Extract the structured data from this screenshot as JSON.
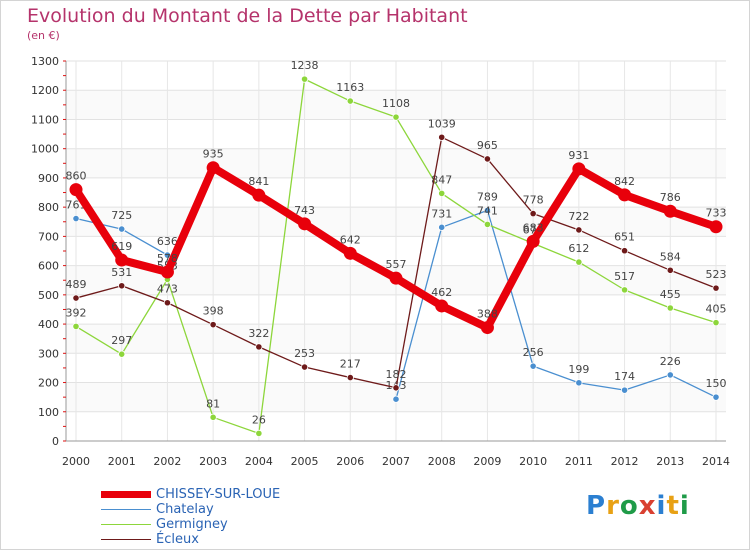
{
  "title": "Evolution du Montant de la Dette par Habitant",
  "subtitle": "(en €)",
  "logo": {
    "text": "Proxiti",
    "colors": [
      "#2b7fd1",
      "#e8a115",
      "#1f9b48",
      "#d94031",
      "#2b7fd1",
      "#e8a115",
      "#1f9b48"
    ]
  },
  "chart_data": {
    "type": "line",
    "title": "Evolution du Montant de la Dette par Habitant",
    "subtitle": "(en €)",
    "xlabel": "",
    "ylabel": "",
    "x": [
      "2000",
      "2001",
      "2002",
      "2003",
      "2004",
      "2005",
      "2006",
      "2007",
      "2008",
      "2009",
      "2010",
      "2011",
      "2012",
      "2013",
      "2014"
    ],
    "ylim": [
      0,
      1300
    ],
    "yticks": [
      0,
      100,
      200,
      300,
      400,
      500,
      600,
      700,
      800,
      900,
      1000,
      1100,
      1200,
      1300
    ],
    "grid": true,
    "legend_position": "bottom-left",
    "series": [
      {
        "name": "CHISSEY-SUR-LOUE",
        "color": "#e8000b",
        "width": 8,
        "values": [
          860,
          619,
          578,
          935,
          841,
          743,
          642,
          557,
          462,
          388,
          683,
          931,
          842,
          786,
          733
        ],
        "labels": [
          "860",
          "619",
          "578",
          "935",
          "841",
          "743",
          "642",
          "557",
          "462",
          "388",
          "683",
          "931",
          "842",
          "786",
          "733"
        ]
      },
      {
        "name": "Chatelay",
        "color": "#4a8fd0",
        "width": 1.3,
        "values": [
          761,
          725,
          636,
          null,
          null,
          null,
          null,
          143,
          731,
          789,
          256,
          199,
          174,
          226,
          150
        ],
        "labels": [
          "761",
          "725",
          "636",
          "",
          "",
          "",
          "",
          "143",
          "731",
          "789",
          "256",
          "199",
          "174",
          "226",
          "150"
        ]
      },
      {
        "name": "Germigney",
        "color": "#8dd63b",
        "width": 1.3,
        "values": [
          392,
          297,
          553,
          81,
          26,
          1238,
          1163,
          1108,
          847,
          741,
          676,
          612,
          517,
          455,
          405
        ],
        "labels": [
          "392",
          "297",
          "553",
          "81",
          "26",
          "1238",
          "1163",
          "1108",
          "847",
          "741",
          "676",
          "612",
          "517",
          "455",
          "405"
        ]
      },
      {
        "name": "Écleux",
        "color": "#6e1a1a",
        "width": 1.3,
        "values": [
          489,
          531,
          473,
          398,
          322,
          253,
          217,
          182,
          1039,
          965,
          778,
          722,
          651,
          584,
          523
        ],
        "labels": [
          "489",
          "531",
          "473",
          "398",
          "322",
          "253",
          "217",
          "182",
          "1039",
          "965",
          "778",
          "722",
          "651",
          "584",
          "523"
        ]
      }
    ]
  }
}
